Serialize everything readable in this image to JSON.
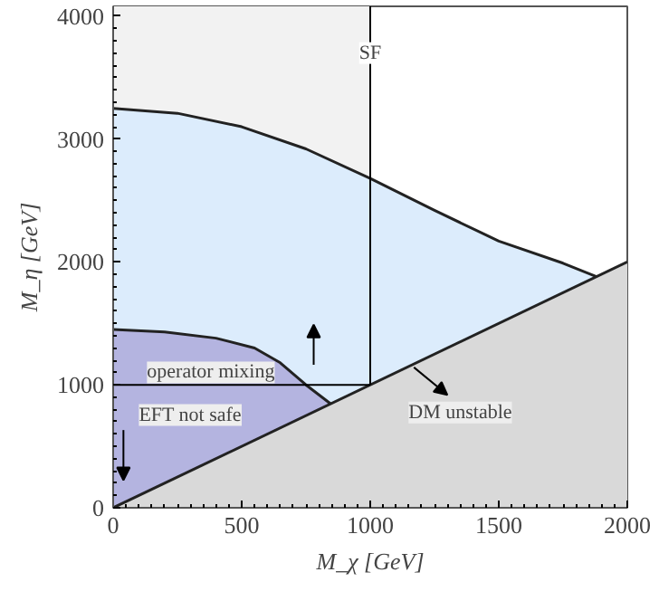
{
  "chart_data": {
    "type": "area",
    "xlabel": "M_χ [GeV]",
    "ylabel": "M_η [GeV]",
    "xlim": [
      0,
      2000
    ],
    "ylim": [
      0,
      4080
    ],
    "xticks": [
      0,
      500,
      1000,
      1500,
      2000
    ],
    "yticks": [
      0,
      1000,
      2000,
      3000,
      4000
    ],
    "grid": false,
    "bands": [
      {
        "axis": "x",
        "from": 0,
        "to": 1000,
        "color": "#f2f2f2"
      }
    ],
    "series": [
      {
        "color": "#dcecfc",
        "x": [
          0,
          250,
          500,
          750,
          1000,
          1250,
          1500,
          1750,
          1880
        ],
        "values": [
          3250,
          3210,
          3100,
          2920,
          2680,
          2420,
          2170,
          1990,
          1880
        ]
      },
      {
        "color": "#b4b4e0",
        "x": [
          0,
          200,
          400,
          550,
          650,
          750,
          850
        ],
        "values": [
          1450,
          1430,
          1380,
          1300,
          1180,
          1000,
          840
        ]
      },
      {
        "color": "#d9d9d9",
        "x": [
          0,
          2000
        ],
        "values": [
          0,
          2000
        ]
      },
      {
        "type": "line",
        "color": "#000000",
        "x": [
          0,
          1000
        ],
        "values": [
          1000,
          1000
        ]
      },
      {
        "type": "line",
        "color": "#000000",
        "x": [
          1000,
          1000
        ],
        "values": [
          1000,
          4080
        ]
      }
    ],
    "annotations": [
      {
        "text": "SF",
        "x": 1000,
        "y": 3700
      },
      "operator mixing",
      "EFT not safe",
      "DM unstable"
    ]
  }
}
